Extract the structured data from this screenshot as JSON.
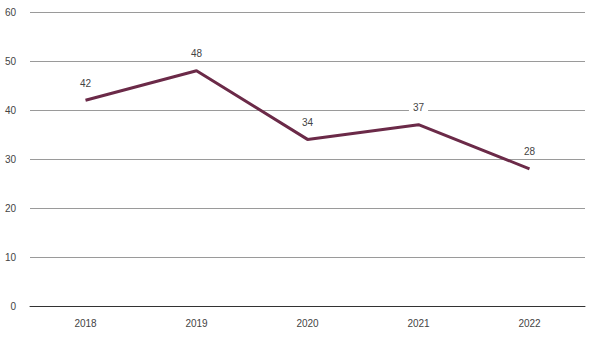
{
  "chart_data": {
    "type": "line",
    "categories": [
      "2018",
      "2019",
      "2020",
      "2021",
      "2022"
    ],
    "values": [
      42,
      48,
      34,
      37,
      28
    ],
    "color": "#6b2a48",
    "ylim": [
      0,
      60
    ],
    "yticks": [
      0,
      10,
      20,
      30,
      40,
      50,
      60
    ],
    "grid": true,
    "data_labels": true
  }
}
